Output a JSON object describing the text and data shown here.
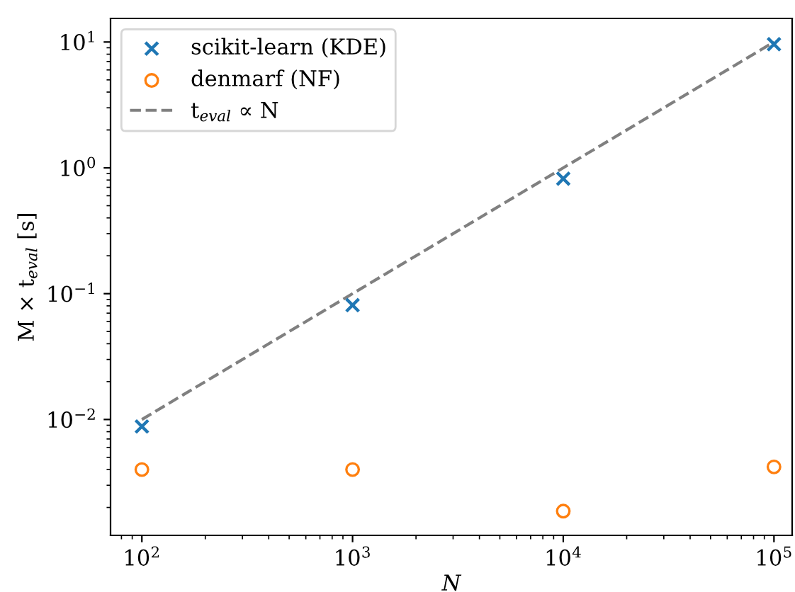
{
  "chart_data": {
    "type": "scatter",
    "xlabel": "N",
    "ylabel": "M × t$_{eval}$ [s]",
    "log": "xy",
    "grid": false,
    "legend": "top left",
    "xlim": [
      71,
      122000
    ],
    "ylim": [
      0.0012,
      15.4
    ],
    "xticks": [
      {
        "value": 100,
        "label": "10$^{2}$"
      },
      {
        "value": 1000,
        "label": "10$^{3}$"
      },
      {
        "value": 10000,
        "label": "10$^{4}$"
      },
      {
        "value": 100000,
        "label": "10$^{5}$"
      }
    ],
    "yticks": [
      {
        "value": 0.01,
        "label": "10$^{−2}$"
      },
      {
        "value": 0.1,
        "label": "10$^{−1}$"
      },
      {
        "value": 1,
        "label": "10$^{0}$"
      },
      {
        "value": 10,
        "label": "10$^{1}$"
      }
    ],
    "series": [
      {
        "name": "scikit-learn (KDE)",
        "color": "#1f77b4",
        "marker": "cross",
        "x": [
          100,
          1000,
          10000,
          100000
        ],
        "values": [
          0.0088,
          0.081,
          0.82,
          9.6
        ]
      },
      {
        "name": "denmarf (NF)",
        "color": "#ff7f0e",
        "marker": "circle",
        "x": [
          100,
          1000,
          10000,
          100000
        ],
        "values": [
          0.004,
          0.004,
          0.00187,
          0.0042
        ]
      },
      {
        "name": "t$_{eval}$ ∝ N",
        "type": "line",
        "color": "#808080",
        "marker": "none",
        "line_style": "dashed",
        "x": [
          100,
          100000
        ],
        "values": [
          0.01,
          10
        ]
      }
    ]
  }
}
